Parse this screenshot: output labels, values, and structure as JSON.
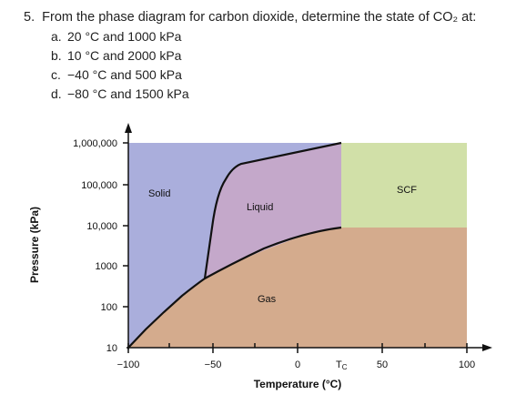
{
  "question": {
    "number": "5.",
    "text": "From the phase diagram for carbon dioxide, determine the state of CO₂ at:",
    "items": [
      {
        "marker": "a.",
        "text": "20 °C and 1000 kPa"
      },
      {
        "marker": "b.",
        "text": "10 °C and 2000 kPa"
      },
      {
        "marker": "c.",
        "text": "−40 °C and 500 kPa"
      },
      {
        "marker": "d.",
        "text": "−80 °C and 1500 kPa"
      }
    ]
  },
  "diagram": {
    "y_axis_label": "Pressure (kPa)",
    "x_axis_label": "Temperature (°C)",
    "y_ticks": [
      "1,000,000",
      "100,000",
      "10,000",
      "1000",
      "100",
      "10"
    ],
    "x_ticks": [
      "−100",
      "−50",
      "0",
      "50",
      "100"
    ],
    "critical_temp_label": "T",
    "critical_temp_subscript": "C",
    "regions": {
      "solid": "Solid",
      "liquid": "Liquid",
      "gas": "Gas",
      "scf": "SCF"
    },
    "colors": {
      "solid": "#aaaedc",
      "liquid": "#c4a8ca",
      "gas": "#d4ab8d",
      "scf": "#d1e0a8"
    }
  }
}
